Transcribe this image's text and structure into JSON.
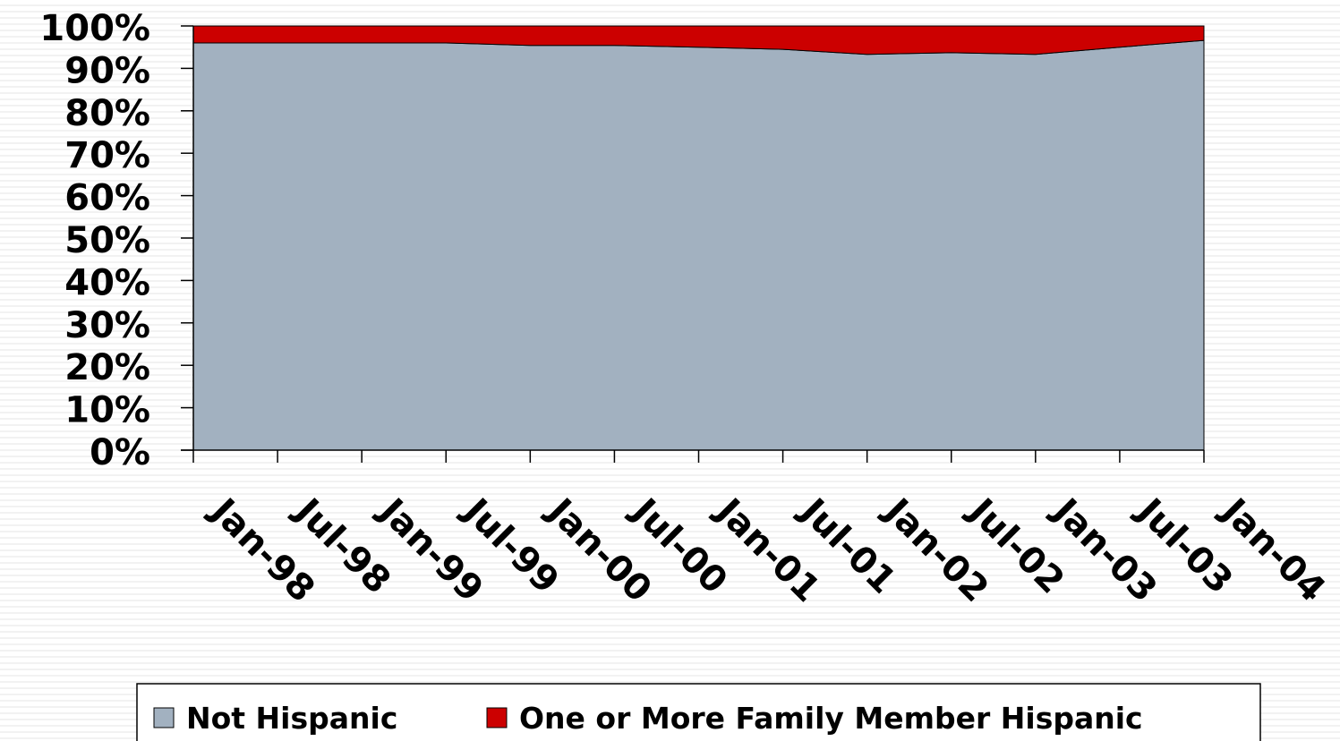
{
  "chart_data": {
    "type": "stacked_area",
    "categories": [
      "Jan-98",
      "Jul-98",
      "Jan-99",
      "Jul-99",
      "Jan-00",
      "Jul-00",
      "Jan-01",
      "Jul-01",
      "Jan-02",
      "Jul-02",
      "Jan-03",
      "Jul-03",
      "Jan-04"
    ],
    "series": [
      {
        "name": "Not Hispanic",
        "color": "#a2b1c0",
        "values": [
          96.0,
          96.0,
          96.0,
          96.0,
          95.4,
          95.4,
          95.0,
          94.5,
          93.3,
          93.7,
          93.3,
          95.0,
          96.6
        ]
      },
      {
        "name": "One or More Family Member Hispanic",
        "color": "#cc0000",
        "values": [
          4.0,
          4.0,
          4.0,
          4.0,
          4.6,
          4.6,
          5.0,
          5.5,
          6.7,
          6.3,
          6.7,
          5.0,
          3.4
        ]
      }
    ],
    "ylim": [
      0,
      100
    ],
    "yticks": [
      {
        "value": 0,
        "label": "0%"
      },
      {
        "value": 10,
        "label": "10%"
      },
      {
        "value": 20,
        "label": "20%"
      },
      {
        "value": 30,
        "label": "30%"
      },
      {
        "value": 40,
        "label": "40%"
      },
      {
        "value": 50,
        "label": "50%"
      },
      {
        "value": 60,
        "label": "60%"
      },
      {
        "value": 70,
        "label": "70%"
      },
      {
        "value": 80,
        "label": "80%"
      },
      {
        "value": 90,
        "label": "90%"
      },
      {
        "value": 100,
        "label": "100%"
      }
    ],
    "legend": "bottom"
  }
}
